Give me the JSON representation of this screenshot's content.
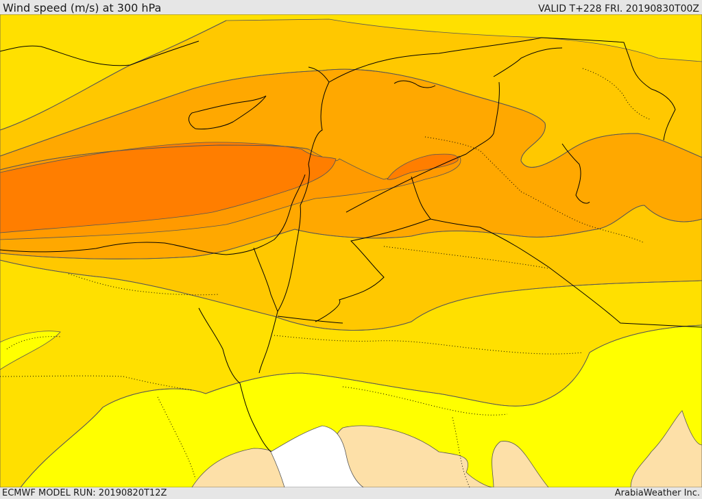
{
  "header": {
    "title": "Wind speed (m/s) at 300 hPa",
    "valid": "VALID T+228 FRI. 20190830T00Z"
  },
  "footer": {
    "model_run": "ECMWF MODEL RUN: 20190820T12Z",
    "credit": "ArabiaWeather Inc."
  },
  "map": {
    "field": "wind speed at 300 hPa",
    "fill_colors": {
      "lowest": "#ffffff",
      "low": "#fde0a8",
      "band_1": "#ffff00",
      "band_2": "#ffe000",
      "band_3": "#ffc800",
      "band_4": "#ffa800",
      "band_5": "#ff9a00",
      "jet_core": "#ff7e00"
    },
    "contour_color": "#555555",
    "border_color": "#000000"
  }
}
